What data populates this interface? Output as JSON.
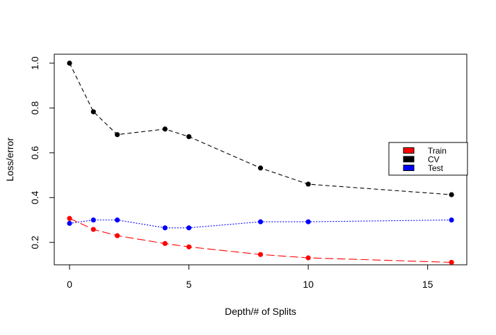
{
  "chart_data": {
    "type": "line",
    "title": "",
    "xlabel": "Depth/# of Splits",
    "ylabel": "Loss/error",
    "xlim": [
      -0.64,
      16.64
    ],
    "ylim": [
      0.1,
      1.04
    ],
    "xticks": [
      0,
      5,
      10,
      15
    ],
    "yticks": [
      0.2,
      0.4,
      0.6,
      0.8,
      1.0
    ],
    "ytick_labels": [
      "0.2",
      "0.4",
      "0.6",
      "0.8",
      "1.0"
    ],
    "grid": false,
    "legend_position": "right",
    "x": [
      0,
      1,
      2,
      4,
      5,
      8,
      10,
      16
    ],
    "series": [
      {
        "name": "Train",
        "color": "#ff0000",
        "line_style": "longdash",
        "values": [
          0.307,
          0.258,
          0.23,
          0.195,
          0.18,
          0.146,
          0.131,
          0.111
        ]
      },
      {
        "name": "CV",
        "color": "#000000",
        "line_style": "dashed",
        "values": [
          1.0,
          0.783,
          0.681,
          0.706,
          0.672,
          0.532,
          0.46,
          0.413
        ]
      },
      {
        "name": "Test",
        "color": "#0000ff",
        "line_style": "dotted",
        "values": [
          0.285,
          0.3,
          0.3,
          0.265,
          0.265,
          0.292,
          0.292,
          0.3
        ]
      }
    ]
  }
}
